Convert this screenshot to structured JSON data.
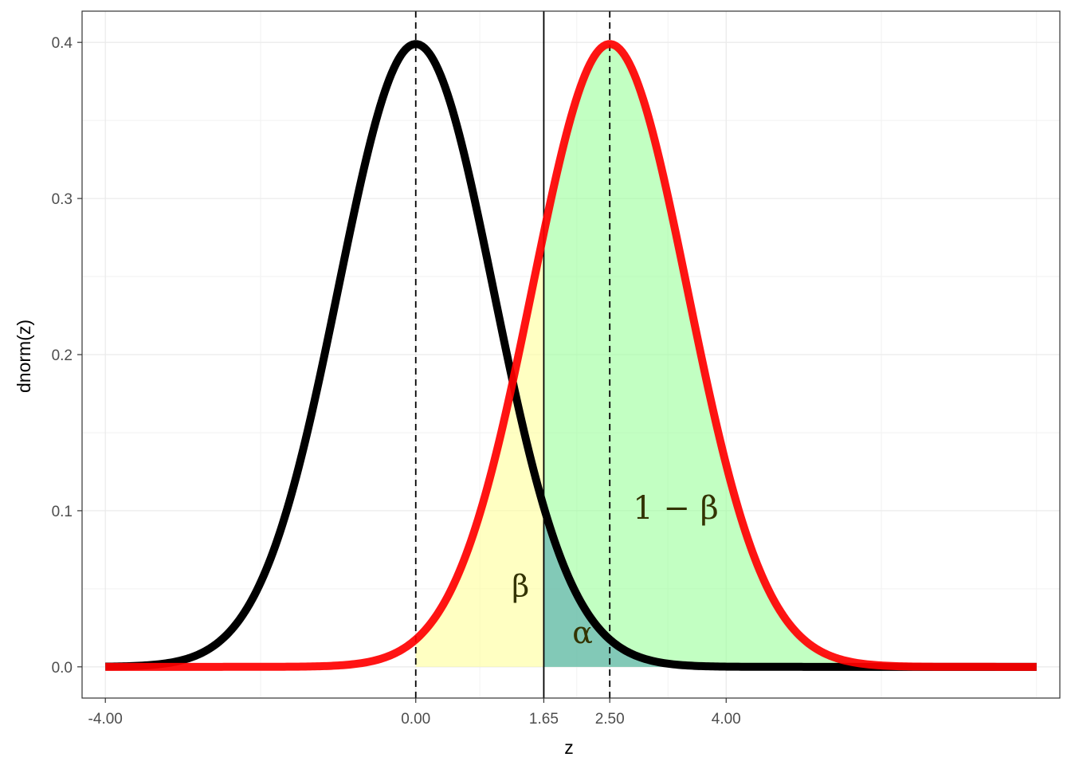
{
  "chart_data": {
    "type": "line",
    "xlabel": "z",
    "ylabel": "dnorm(z)",
    "xlim": [
      -4.3,
      8.3
    ],
    "ylim": [
      -0.02,
      0.42
    ],
    "x_ticks": [
      -4,
      0,
      1.65,
      2.5,
      4
    ],
    "x_tick_labels": [
      "-4.00",
      "0.00",
      "1.65",
      "2.50",
      "4.00"
    ],
    "y_ticks": [
      0,
      0.1,
      0.2,
      0.3,
      0.4
    ],
    "y_tick_labels": [
      "0.0",
      "0.1",
      "0.2",
      "0.3",
      "0.4"
    ],
    "grid": true,
    "series": [
      {
        "color": "#000000",
        "x": [
          -4,
          -3.5,
          -3,
          -2.5,
          -2,
          -1.5,
          -1,
          -0.5,
          0,
          0.5,
          1,
          1.5,
          2,
          2.5,
          3,
          3.5,
          4,
          4.5,
          5,
          5.5,
          6,
          6.5,
          7,
          7.5,
          8
        ],
        "y": [
          0.0001,
          0.0009,
          0.0044,
          0.0175,
          0.054,
          0.1295,
          0.242,
          0.3521,
          0.3989,
          0.3521,
          0.242,
          0.1295,
          0.054,
          0.0175,
          0.0044,
          0.0009,
          0.0001,
          0.0,
          0.0,
          0.0,
          0.0,
          0.0,
          0.0,
          0.0,
          0.0
        ]
      },
      {
        "color": "#ff0000",
        "x": [
          -4,
          -3.5,
          -3,
          -2.5,
          -2,
          -1.5,
          -1,
          -0.5,
          0,
          0.5,
          1,
          1.5,
          2,
          2.5,
          3,
          3.5,
          4,
          4.5,
          5,
          5.5,
          6,
          6.5,
          7,
          7.5,
          8
        ],
        "y": [
          0.0,
          0.0,
          0.0,
          0.0,
          0.0,
          0.0,
          0.0001,
          0.0044,
          0.0175,
          0.054,
          0.1295,
          0.242,
          0.3521,
          0.3989,
          0.3521,
          0.242,
          0.1295,
          0.054,
          0.0175,
          0.0044,
          0.0009,
          0.0001,
          0.0,
          0.0,
          0.0
        ]
      }
    ],
    "critical_value": 1.65,
    "dashed_lines": [
      0,
      2.5
    ],
    "shaded_regions": [
      {
        "label": "β",
        "from": 0,
        "to": 1.65,
        "curve_mean": 2.5,
        "color": "#ffff99"
      },
      {
        "label": "1 − β",
        "from": 1.65,
        "to": 6,
        "curve_mean": 2.5,
        "color": "#99ff99"
      },
      {
        "label": "α",
        "from": 1.65,
        "to": 6,
        "curve_mean": 0,
        "color": "#66b2b2"
      }
    ],
    "annotations": [
      {
        "text": "β",
        "x": 1.35,
        "y": 0.05
      },
      {
        "text": "α",
        "x": 2.15,
        "y": 0.02
      },
      {
        "text": "1 − β",
        "x": 3.35,
        "y": 0.1
      }
    ]
  }
}
